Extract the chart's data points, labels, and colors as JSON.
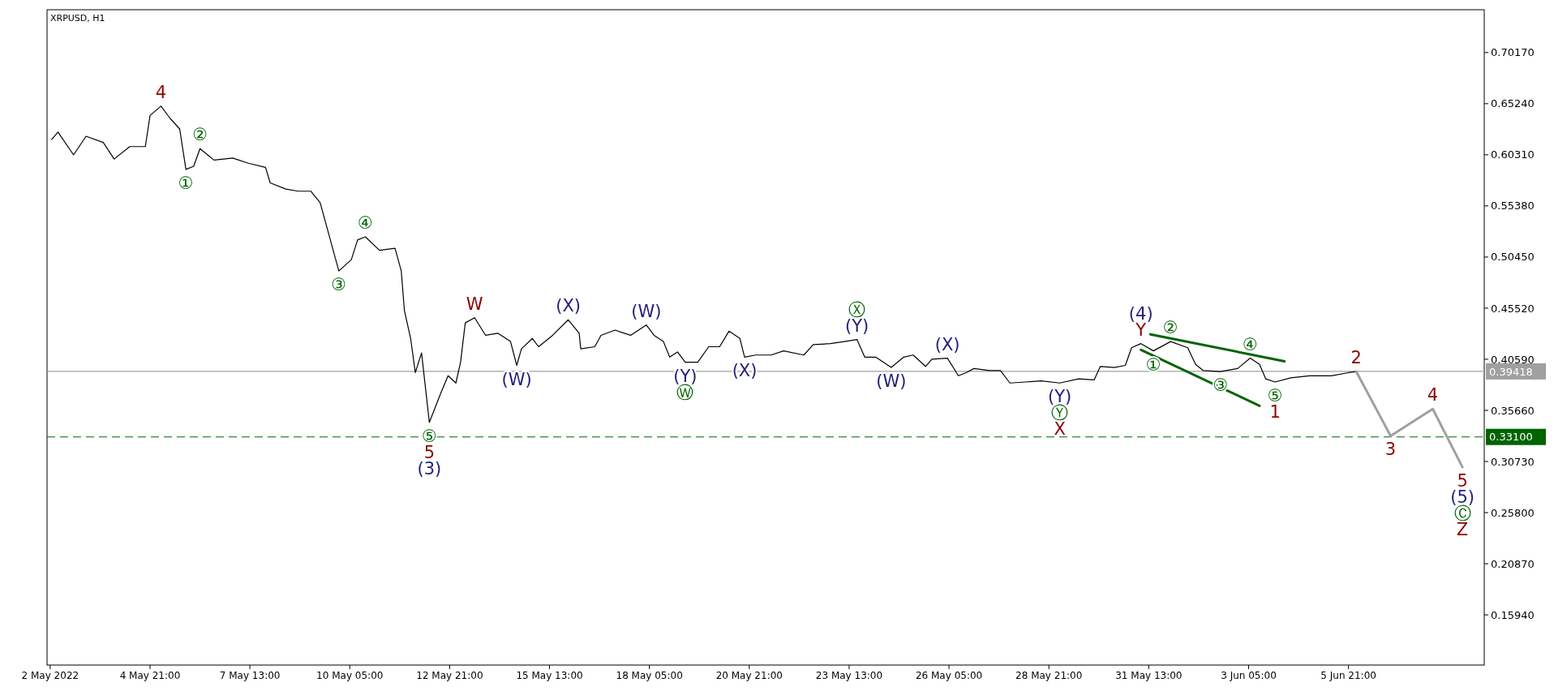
{
  "chart_data": {
    "type": "line",
    "title": "XRPUSD, H1",
    "xlim": [
      "2022-05-02T03:00",
      "2022-06-09T12:00"
    ],
    "ylim": [
      0.111,
      0.743
    ],
    "xticks": [
      {
        "value": "2022-05-02T05:00",
        "label": "2 May 2022"
      },
      {
        "value": "2022-05-04T21:00",
        "label": "4 May 21:00"
      },
      {
        "value": "2022-05-07T13:00",
        "label": "7 May 13:00"
      },
      {
        "value": "2022-05-10T05:00",
        "label": "10 May 05:00"
      },
      {
        "value": "2022-05-12T21:00",
        "label": "12 May 21:00"
      },
      {
        "value": "2022-05-15T13:00",
        "label": "15 May 13:00"
      },
      {
        "value": "2022-05-18T05:00",
        "label": "18 May 05:00"
      },
      {
        "value": "2022-05-20T21:00",
        "label": "20 May 21:00"
      },
      {
        "value": "2022-05-23T13:00",
        "label": "23 May 13:00"
      },
      {
        "value": "2022-05-26T05:00",
        "label": "26 May 05:00"
      },
      {
        "value": "2022-05-28T21:00",
        "label": "28 May 21:00"
      },
      {
        "value": "2022-05-31T13:00",
        "label": "31 May 13:00"
      },
      {
        "value": "2022-06-03T05:00",
        "label": "3 Jun 05:00"
      },
      {
        "value": "2022-06-05T21:00",
        "label": "5 Jun 21:00"
      }
    ],
    "yticks": [
      {
        "value": 0.7017,
        "label": "0.70170"
      },
      {
        "value": 0.6524,
        "label": "0.65240"
      },
      {
        "value": 0.6031,
        "label": "0.60310"
      },
      {
        "value": 0.5538,
        "label": "0.55380"
      },
      {
        "value": 0.5045,
        "label": "0.50450"
      },
      {
        "value": 0.4552,
        "label": "0.45520"
      },
      {
        "value": 0.4059,
        "label": "0.40590"
      },
      {
        "value": 0.3566,
        "label": "0.35660"
      },
      {
        "value": 0.3073,
        "label": "0.30730"
      },
      {
        "value": 0.258,
        "label": "0.25800"
      },
      {
        "value": 0.2087,
        "label": "0.20870"
      },
      {
        "value": 0.1594,
        "label": "0.15940"
      }
    ],
    "grid": false,
    "marker": "none",
    "series": [
      {
        "color": "#000000",
        "line_style": "solid",
        "x": [
          "2022-05-02T06:00",
          "2022-05-02T10:00",
          "2022-05-02T20:00",
          "2022-05-03T04:00",
          "2022-05-03T15:00",
          "2022-05-03T22:00",
          "2022-05-04T08:00",
          "2022-05-04T18:00",
          "2022-05-04T21:00",
          "2022-05-05T04:00",
          "2022-05-05T10:00",
          "2022-05-05T16:00",
          "2022-05-05T20:00",
          "2022-05-06T01:00",
          "2022-05-06T05:00",
          "2022-05-06T14:00",
          "2022-05-07T02:00",
          "2022-05-07T12:00",
          "2022-05-07T23:00",
          "2022-05-08T02:00",
          "2022-05-08T12:00",
          "2022-05-08T20:00",
          "2022-05-09T04:00",
          "2022-05-09T10:00",
          "2022-05-09T14:00",
          "2022-05-09T20:00",
          "2022-05-09T22:00",
          "2022-05-10T06:00",
          "2022-05-10T10:00",
          "2022-05-10T15:00",
          "2022-05-11T00:00",
          "2022-05-11T10:00",
          "2022-05-11T14:00",
          "2022-05-11T16:00",
          "2022-05-11T20:00",
          "2022-05-11T23:00",
          "2022-05-12T03:00",
          "2022-05-12T08:00",
          "2022-05-12T15:00",
          "2022-05-12T20:00",
          "2022-05-13T01:00",
          "2022-05-13T04:00",
          "2022-05-13T07:00",
          "2022-05-13T13:00",
          "2022-05-13T20:00",
          "2022-05-14T04:00",
          "2022-05-14T12:00",
          "2022-05-14T16:00",
          "2022-05-14T19:00",
          "2022-05-15T02:00",
          "2022-05-15T06:00",
          "2022-05-15T15:00",
          "2022-05-16T01:00",
          "2022-05-16T08:00",
          "2022-05-16T09:00",
          "2022-05-16T18:00",
          "2022-05-16T22:00",
          "2022-05-17T07:00",
          "2022-05-17T17:00",
          "2022-05-18T03:00",
          "2022-05-18T08:00",
          "2022-05-18T14:00",
          "2022-05-18T18:00",
          "2022-05-18T23:00",
          "2022-05-19T04:00",
          "2022-05-19T12:00",
          "2022-05-19T19:00",
          "2022-05-20T02:00",
          "2022-05-20T08:00",
          "2022-05-20T15:00",
          "2022-05-20T18:00",
          "2022-05-21T01:00",
          "2022-05-21T11:00",
          "2022-05-21T19:00",
          "2022-05-22T08:00",
          "2022-05-22T14:00",
          "2022-05-23T01:00",
          "2022-05-23T10:00",
          "2022-05-23T18:00",
          "2022-05-23T23:00",
          "2022-05-24T06:00",
          "2022-05-24T16:00",
          "2022-05-25T00:00",
          "2022-05-25T06:00",
          "2022-05-25T14:00",
          "2022-05-25T18:00",
          "2022-05-26T04:00",
          "2022-05-26T11:00",
          "2022-05-26T16:00",
          "2022-05-26T21:00",
          "2022-05-27T07:00",
          "2022-05-27T14:00",
          "2022-05-27T20:00",
          "2022-05-28T06:00",
          "2022-05-28T16:00",
          "2022-05-29T04:00",
          "2022-05-29T16:00",
          "2022-05-30T02:00",
          "2022-05-30T06:00",
          "2022-05-30T15:00",
          "2022-05-30T22:00",
          "2022-05-31T02:00",
          "2022-05-31T08:00",
          "2022-05-31T16:00",
          "2022-06-01T03:00",
          "2022-06-01T14:00",
          "2022-06-01T19:00",
          "2022-06-02T00:00",
          "2022-06-02T11:00",
          "2022-06-02T22:00",
          "2022-06-03T06:00",
          "2022-06-03T12:00",
          "2022-06-03T16:00",
          "2022-06-03T22:00",
          "2022-06-04T08:00",
          "2022-06-04T20:00",
          "2022-06-05T10:00",
          "2022-06-05T21:00",
          "2022-06-06T02:00"
        ],
        "values": [
          0.618,
          0.625,
          0.603,
          0.621,
          0.615,
          0.599,
          0.611,
          0.611,
          0.641,
          0.65,
          0.638,
          0.628,
          0.589,
          0.592,
          0.609,
          0.598,
          0.6,
          0.595,
          0.591,
          0.576,
          0.57,
          0.568,
          0.568,
          0.557,
          0.535,
          0.502,
          0.491,
          0.502,
          0.521,
          0.524,
          0.511,
          0.513,
          0.491,
          0.453,
          0.426,
          0.393,
          0.412,
          0.345,
          0.372,
          0.39,
          0.383,
          0.403,
          0.441,
          0.446,
          0.429,
          0.431,
          0.423,
          0.4,
          0.416,
          0.426,
          0.418,
          0.429,
          0.444,
          0.431,
          0.416,
          0.418,
          0.429,
          0.434,
          0.429,
          0.439,
          0.429,
          0.423,
          0.408,
          0.413,
          0.403,
          0.403,
          0.418,
          0.418,
          0.433,
          0.426,
          0.408,
          0.41,
          0.41,
          0.414,
          0.41,
          0.42,
          0.421,
          0.423,
          0.425,
          0.408,
          0.408,
          0.398,
          0.408,
          0.41,
          0.399,
          0.406,
          0.407,
          0.39,
          0.393,
          0.397,
          0.395,
          0.395,
          0.383,
          0.384,
          0.385,
          0.383,
          0.387,
          0.386,
          0.399,
          0.398,
          0.4,
          0.417,
          0.421,
          0.414,
          0.423,
          0.417,
          0.401,
          0.395,
          0.394,
          0.397,
          0.407,
          0.401,
          0.387,
          0.384,
          0.388,
          0.39,
          0.39,
          0.393,
          0.394
        ]
      },
      {
        "color": "#a0a0a0",
        "line_style": "solid",
        "x": [
          "2022-06-06T02:00",
          "2022-06-07T00:00",
          "2022-06-08T03:00",
          "2022-06-08T22:00"
        ],
        "values": [
          0.394,
          0.332,
          0.358,
          0.302
        ]
      },
      {
        "color": "#006400",
        "line_style": "solid",
        "x": [
          "2022-05-31T14:00",
          "2022-06-04T04:00"
        ],
        "values": [
          0.43,
          0.404
        ]
      },
      {
        "color": "#006400",
        "line_style": "solid",
        "x": [
          "2022-05-31T08:00",
          "2022-06-03T12:00"
        ],
        "values": [
          0.415,
          0.361
        ]
      }
    ],
    "ref_lines": [
      {
        "axis": "y",
        "value": 0.39418,
        "label": "0.39418",
        "color": "#a0a0a0",
        "line_style": "solid"
      },
      {
        "axis": "y",
        "value": 0.331,
        "label": "0.33100",
        "color": "#006400",
        "line_style": "dashed"
      }
    ],
    "annotations": [
      {
        "text": "4",
        "x": "2022-05-05T04:00",
        "y": 0.65
      },
      {
        "text": "②",
        "x": "2022-05-06T05:00",
        "y": 0.609
      },
      {
        "text": "①",
        "x": "2022-05-05T20:00",
        "y": 0.589
      },
      {
        "text": "④",
        "x": "2022-05-10T15:00",
        "y": 0.524
      },
      {
        "text": "③",
        "x": "2022-05-09T22:00",
        "y": 0.491
      },
      {
        "text": "W",
        "x": "2022-05-13T13:00",
        "y": 0.446
      },
      {
        "text": "⑤",
        "x": "2022-05-12T08:00",
        "y": 0.345
      },
      {
        "text": "5",
        "x": "2022-05-12T08:00",
        "y": 0.345
      },
      {
        "text": "(3)",
        "x": "2022-05-12T08:00",
        "y": 0.345
      },
      {
        "text": "(W)",
        "x": "2022-05-14T16:00",
        "y": 0.4
      },
      {
        "text": "(X)",
        "x": "2022-05-16T01:00",
        "y": 0.444
      },
      {
        "text": "(W)",
        "x": "2022-05-18T03:00",
        "y": 0.439
      },
      {
        "text": "(Y)",
        "x": "2022-05-19T04:00",
        "y": 0.403
      },
      {
        "text": "Ⓦ",
        "x": "2022-05-19T04:00",
        "y": 0.403
      },
      {
        "text": "(X)",
        "x": "2022-05-20T18:00",
        "y": 0.408
      },
      {
        "text": "(Y)",
        "x": "2022-05-23T18:00",
        "y": 0.425
      },
      {
        "text": "Ⓧ",
        "x": "2022-05-23T18:00",
        "y": 0.425
      },
      {
        "text": "(W)",
        "x": "2022-05-24T16:00",
        "y": 0.398
      },
      {
        "text": "(X)",
        "x": "2022-05-26T04:00",
        "y": 0.407
      },
      {
        "text": "(Y)",
        "x": "2022-05-29T04:00",
        "y": 0.383
      },
      {
        "text": "Ⓨ",
        "x": "2022-05-29T04:00",
        "y": 0.383
      },
      {
        "text": "X",
        "x": "2022-05-29T04:00",
        "y": 0.383
      },
      {
        "text": "Y",
        "x": "2022-05-31T08:00",
        "y": 0.421
      },
      {
        "text": "(4)",
        "x": "2022-05-31T08:00",
        "y": 0.421
      },
      {
        "text": "②",
        "x": "2022-06-01T03:00",
        "y": 0.423
      },
      {
        "text": "①",
        "x": "2022-05-31T16:00",
        "y": 0.414
      },
      {
        "text": "③",
        "x": "2022-06-02T11:00",
        "y": 0.394
      },
      {
        "text": "④",
        "x": "2022-06-03T06:00",
        "y": 0.407
      },
      {
        "text": "⑤",
        "x": "2022-06-03T22:00",
        "y": 0.384
      },
      {
        "text": "1",
        "x": "2022-06-03T22:00",
        "y": 0.384
      },
      {
        "text": "2",
        "x": "2022-06-06T02:00",
        "y": 0.394
      },
      {
        "text": "3",
        "x": "2022-06-07T00:00",
        "y": 0.332
      },
      {
        "text": "4",
        "x": "2022-06-08T03:00",
        "y": 0.358
      },
      {
        "text": "5",
        "x": "2022-06-08T22:00",
        "y": 0.302
      },
      {
        "text": "(5)",
        "x": "2022-06-08T22:00",
        "y": 0.302
      },
      {
        "text": "Ⓒ",
        "x": "2022-06-08T22:00",
        "y": 0.302
      },
      "Z"
    ]
  }
}
